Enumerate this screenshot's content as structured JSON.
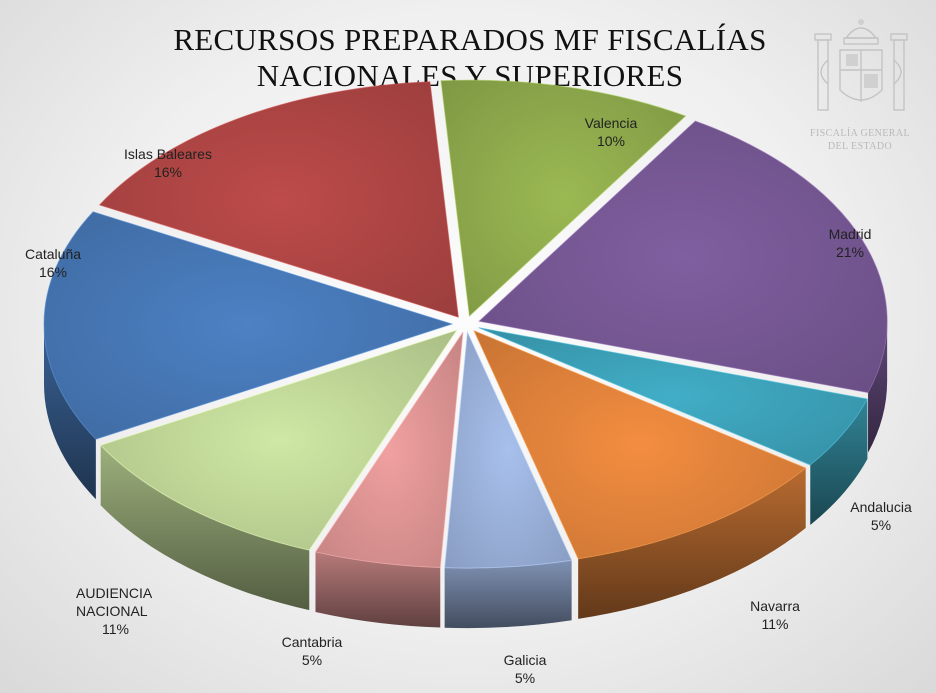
{
  "chart_data": {
    "type": "pie",
    "title_lines": [
      "RECURSOS PREPARADOS MF FISCALÍAS",
      "NACIONALES Y SUPERIORES"
    ],
    "slices": [
      {
        "name": "Valencia",
        "value": 10,
        "label": "10%",
        "color": "#8aa54a"
      },
      {
        "name": "Madrid",
        "value": 21,
        "label": "21%",
        "color": "#72558f"
      },
      {
        "name": "Andalucia",
        "value": 5,
        "label": "5%",
        "color": "#3a9bb2"
      },
      {
        "name": "Navarra",
        "value": 11,
        "label": "11%",
        "color": "#d97e39"
      },
      {
        "name": "Galicia",
        "value": 5,
        "label": "5%",
        "color": "#95abd3"
      },
      {
        "name": "Cantabria",
        "value": 5,
        "label": "5%",
        "color": "#d68f8e"
      },
      {
        "name": "AUDIENCIA NACIONAL",
        "name_lines": [
          "AUDIENCIA",
          "NACIONAL"
        ],
        "value": 11,
        "label": "11%",
        "color": "#b9cf92"
      },
      {
        "name": "Cataluña",
        "value": 16,
        "label": "16%",
        "color": "#4473af"
      },
      {
        "name": "Islas Baleares",
        "value": 16,
        "label": "16%",
        "color": "#a94342"
      }
    ]
  },
  "emblem": {
    "icon": "coat-of-arms-icon",
    "text_lines": [
      "FISCALÍA GENERAL",
      "DEL ESTADO"
    ]
  }
}
